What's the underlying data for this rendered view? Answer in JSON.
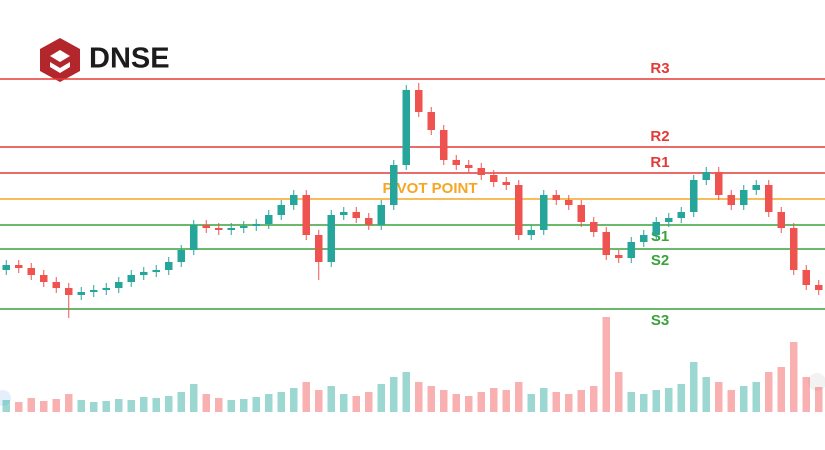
{
  "chart_data": {
    "type": "candlestick",
    "logo": "DNSE",
    "up_color": "#26a69a",
    "down_color": "#ef5350",
    "ylim": [
      0,
      450
    ],
    "volume_lim": [
      0,
      100
    ],
    "open": [
      180,
      185,
      182,
      175,
      168,
      162,
      155,
      158,
      160,
      162,
      168,
      175,
      178,
      180,
      188,
      200,
      225,
      222,
      220,
      222,
      224,
      226,
      235,
      245,
      255,
      215,
      188,
      235,
      238,
      232,
      225,
      245,
      285,
      360,
      338,
      320,
      290,
      285,
      282,
      275,
      268,
      265,
      215,
      220,
      255,
      250,
      245,
      228,
      218,
      195,
      192,
      208,
      215,
      228,
      232,
      238,
      270,
      278,
      255,
      245,
      260,
      265,
      238,
      222,
      180,
      165
    ],
    "high": [
      190,
      190,
      187,
      180,
      173,
      167,
      163,
      165,
      167,
      173,
      180,
      183,
      185,
      193,
      205,
      230,
      230,
      227,
      227,
      229,
      231,
      240,
      250,
      260,
      260,
      220,
      240,
      243,
      243,
      237,
      250,
      290,
      365,
      367,
      343,
      325,
      295,
      290,
      287,
      280,
      273,
      270,
      225,
      260,
      260,
      255,
      250,
      233,
      223,
      200,
      213,
      220,
      233,
      237,
      243,
      275,
      283,
      283,
      260,
      265,
      270,
      270,
      243,
      227,
      185,
      170
    ],
    "low": [
      175,
      177,
      170,
      163,
      157,
      132,
      150,
      153,
      155,
      157,
      163,
      170,
      173,
      175,
      183,
      195,
      217,
      215,
      215,
      217,
      219,
      221,
      230,
      240,
      210,
      170,
      183,
      230,
      227,
      220,
      220,
      240,
      280,
      333,
      315,
      285,
      280,
      277,
      270,
      263,
      260,
      210,
      210,
      215,
      245,
      240,
      223,
      213,
      190,
      187,
      187,
      203,
      210,
      223,
      227,
      233,
      265,
      250,
      240,
      240,
      255,
      233,
      217,
      175,
      160,
      155
    ],
    "close": [
      185,
      182,
      175,
      168,
      162,
      155,
      158,
      160,
      162,
      168,
      175,
      178,
      180,
      188,
      200,
      225,
      222,
      220,
      222,
      224,
      226,
      235,
      245,
      255,
      215,
      188,
      235,
      238,
      232,
      225,
      245,
      285,
      360,
      338,
      320,
      290,
      285,
      282,
      275,
      268,
      265,
      215,
      220,
      255,
      250,
      245,
      228,
      218,
      195,
      192,
      208,
      215,
      228,
      232,
      238,
      270,
      278,
      255,
      245,
      260,
      265,
      238,
      222,
      180,
      165,
      160
    ],
    "volume": [
      12,
      10,
      14,
      11,
      13,
      18,
      12,
      10,
      11,
      13,
      12,
      15,
      14,
      16,
      20,
      28,
      18,
      14,
      12,
      13,
      15,
      18,
      20,
      24,
      30,
      22,
      26,
      18,
      16,
      20,
      28,
      35,
      40,
      30,
      26,
      22,
      18,
      16,
      20,
      24,
      22,
      30,
      18,
      24,
      20,
      18,
      22,
      26,
      95,
      40,
      20,
      18,
      22,
      24,
      28,
      50,
      35,
      30,
      22,
      26,
      30,
      40,
      45,
      70,
      35,
      25
    ],
    "levels": [
      {
        "name": "R3",
        "value": 371,
        "color": "#e53935"
      },
      {
        "name": "R2",
        "value": 303,
        "color": "#e53935"
      },
      {
        "name": "R1",
        "value": 277,
        "color": "#e53935"
      },
      {
        "name": "PIVOT POINT",
        "value": 251,
        "color": "#f5a623"
      },
      {
        "name": "S1",
        "value": 225,
        "color": "#3aa33a"
      },
      {
        "name": "S2",
        "value": 201,
        "color": "#3aa33a"
      },
      {
        "name": "S3",
        "value": 141,
        "color": "#3aa33a"
      }
    ]
  }
}
